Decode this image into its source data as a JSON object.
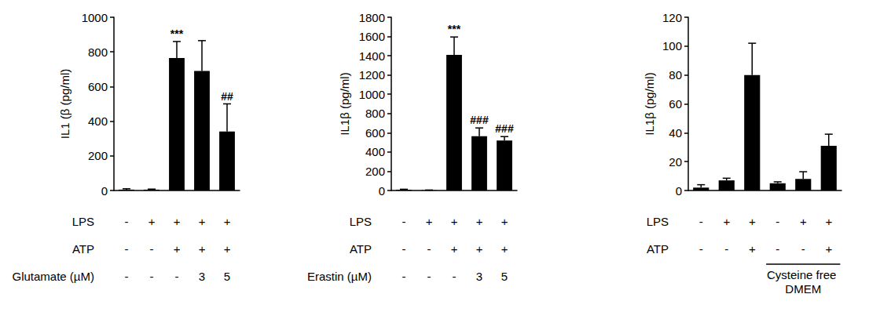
{
  "chart_data": [
    {
      "type": "bar",
      "y_label": "IL1 (β (pg/ml)",
      "row_labels": [
        "LPS",
        "ATP",
        "Glutamate (µM)"
      ],
      "categories": [
        "-\n-\n-",
        "+\n-\n-",
        "+\n+\n-",
        "+\n+\n3",
        "+\n+\n5"
      ],
      "values": [
        5,
        5,
        765,
        690,
        340
      ],
      "errors": [
        5,
        3,
        95,
        175,
        160
      ],
      "significance": [
        null,
        null,
        "***",
        null,
        "##"
      ],
      "color": "#000000",
      "ylim": [
        0,
        1000
      ],
      "yticks": [
        0,
        200,
        400,
        600,
        800,
        1000
      ],
      "grid": false
    },
    {
      "type": "bar",
      "y_label": "IL1β (pg/ml)",
      "row_labels": [
        "LPS",
        "ATP",
        "Erastin (µM)"
      ],
      "categories": [
        "-\n-\n-",
        "+\n-\n-",
        "+\n+\n-",
        "+\n+\n3",
        "+\n+\n5"
      ],
      "values": [
        8,
        3,
        1410,
        565,
        520
      ],
      "errors": [
        5,
        2,
        185,
        85,
        40
      ],
      "significance": [
        null,
        null,
        "***",
        "###",
        "###"
      ],
      "color": "#000000",
      "ylim": [
        0,
        1800
      ],
      "yticks": [
        0,
        200,
        400,
        600,
        800,
        1000,
        1200,
        1400,
        1600,
        1800
      ],
      "grid": false
    },
    {
      "type": "bar",
      "y_label": "IL1β (pg/ml)",
      "row_labels": [
        "LPS",
        "ATP"
      ],
      "categories": [
        "-\n-",
        "+\n-",
        "+\n+",
        "-\n-",
        "+\n-",
        "+\n+"
      ],
      "values": [
        2,
        7,
        80,
        5,
        8,
        31
      ],
      "errors": [
        2,
        1.5,
        22,
        1,
        5,
        8
      ],
      "group_label": {
        "text": "Cysteine free DMEM",
        "from": 3,
        "to": 5
      },
      "color": "#000000",
      "ylim": [
        0,
        120
      ],
      "yticks": [
        0,
        20,
        40,
        60,
        80,
        100,
        120
      ],
      "grid": false
    }
  ]
}
